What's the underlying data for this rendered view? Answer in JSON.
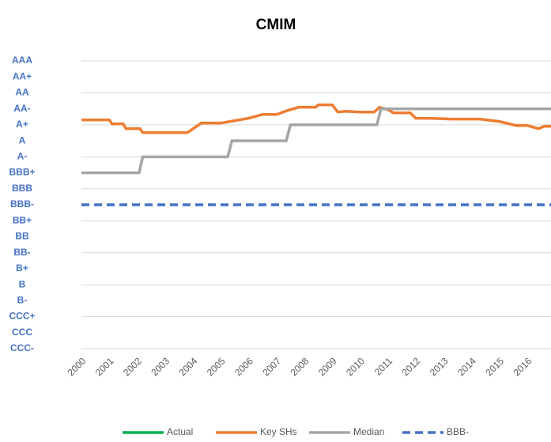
{
  "chart_data": {
    "type": "line",
    "title": "CMIM",
    "xlim": [
      2000,
      2016.85
    ],
    "xticks": [
      2000,
      2001,
      2002,
      2003,
      2004,
      2005,
      2006,
      2007,
      2008,
      2009,
      2010,
      2011,
      2012,
      2013,
      2014,
      2015,
      2016
    ],
    "ylim": [
      1,
      19
    ],
    "yticks": [
      {
        "value": 19,
        "label": "AAA"
      },
      {
        "value": 18,
        "label": "AA+"
      },
      {
        "value": 17,
        "label": "AA"
      },
      {
        "value": 16,
        "label": "AA-"
      },
      {
        "value": 15,
        "label": "A+"
      },
      {
        "value": 14,
        "label": "A"
      },
      {
        "value": 13,
        "label": "A-"
      },
      {
        "value": 12,
        "label": "BBB+"
      },
      {
        "value": 11,
        "label": "BBB"
      },
      {
        "value": 10,
        "label": "BBB-"
      },
      {
        "value": 9,
        "label": "BB+"
      },
      {
        "value": 8,
        "label": "BB"
      },
      {
        "value": 7,
        "label": "BB-"
      },
      {
        "value": 6,
        "label": "B+"
      },
      {
        "value": 5,
        "label": "B"
      },
      {
        "value": 4,
        "label": "B-"
      },
      {
        "value": 3,
        "label": "CCC+"
      },
      {
        "value": 2,
        "label": "CCC"
      },
      {
        "value": 1,
        "label": "CCC-"
      }
    ],
    "grid": true,
    "legend": "bottom",
    "series": [
      {
        "name": "Actual",
        "color": "#00b050",
        "x": [],
        "values": []
      },
      {
        "name": "Key SHs",
        "color": "#ed7d31",
        "x": [
          2000,
          2001,
          2001.1,
          2001.5,
          2001.6,
          2002.1,
          2002.2,
          2003.8,
          2004.3,
          2005,
          2005.5,
          2006,
          2006.5,
          2007,
          2007.4,
          2007.8,
          2008.4,
          2008.5,
          2009,
          2009.2,
          2009.5,
          2010,
          2010.5,
          2010.7,
          2011,
          2011.2,
          2011.8,
          2012,
          2012.5,
          2013.3,
          2014.3,
          2015,
          2015.6,
          2016,
          2016.4,
          2016.6,
          2016.85
        ],
        "values": [
          15.31,
          15.31,
          15.06,
          15.06,
          14.76,
          14.76,
          14.51,
          14.51,
          15.11,
          15.11,
          15.26,
          15.41,
          15.65,
          15.65,
          15.9,
          16.1,
          16.1,
          16.25,
          16.25,
          15.8,
          15.85,
          15.8,
          15.8,
          16.1,
          15.95,
          15.75,
          15.75,
          15.41,
          15.41,
          15.36,
          15.36,
          15.21,
          14.96,
          14.96,
          14.76,
          14.91,
          14.91
        ]
      },
      {
        "name": "Median",
        "color": "#a5a5a5",
        "x": [
          2000,
          2002.07,
          2002.2,
          2005.25,
          2005.4,
          2007.35,
          2007.5,
          2010.6,
          2010.75,
          2016.85
        ],
        "values": [
          12,
          12,
          13,
          13,
          14,
          14,
          15,
          15,
          16,
          16
        ]
      },
      {
        "name": "BBB-",
        "color": "#4472c4",
        "dash": true,
        "x": [
          2000,
          2016.85
        ],
        "values": [
          10,
          10
        ]
      }
    ]
  }
}
